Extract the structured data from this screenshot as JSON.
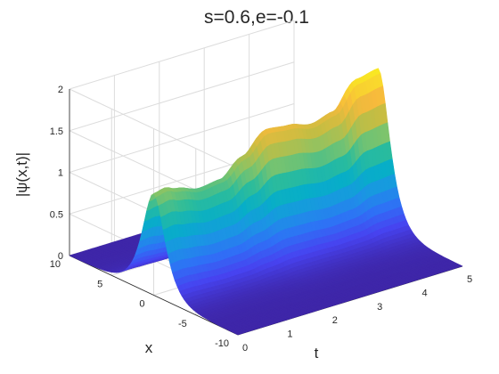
{
  "chart_data": {
    "type": "surface3d",
    "title": "s=0.6,e=-0.1",
    "xlabel": "t",
    "ylabel": "x",
    "zlabel": "|ψ(x,t)|",
    "t_range": [
      0,
      5
    ],
    "x_range": [
      -10,
      10
    ],
    "z_range": [
      0,
      2
    ],
    "t_ticks": [
      "0",
      "1",
      "2",
      "3",
      "4",
      "5"
    ],
    "x_ticks": [
      "10",
      "5",
      "0",
      "-5",
      "-10"
    ],
    "z_ticks": [
      "0",
      "0.5",
      "1",
      "1.5",
      "2"
    ],
    "grid": true,
    "colormap": "parula",
    "colormap_colors": [
      "#3e26a8",
      "#4743f0",
      "#2f70f6",
      "#1b95e4",
      "#07aec8",
      "#2bbc9c",
      "#81c46a",
      "#c6bd42",
      "#f7ba3c",
      "#f9dc2b",
      "#f9fb15"
    ],
    "surface": {
      "description": "bright soliton ridge centered near x = 0 with slowly modulated amplitude along t",
      "ridge_center_x": 0,
      "ridge_half_width_x": 1.2,
      "amplitude_samples": {
        "t": [
          0,
          0.25,
          0.5,
          1.0,
          1.5,
          2.0,
          2.5,
          3.0,
          3.5,
          4.0,
          4.5,
          5.0
        ],
        "peak": [
          1.22,
          1.25,
          1.2,
          1.12,
          1.15,
          1.35,
          1.58,
          1.55,
          1.48,
          1.55,
          1.85,
          1.9
        ]
      }
    }
  }
}
